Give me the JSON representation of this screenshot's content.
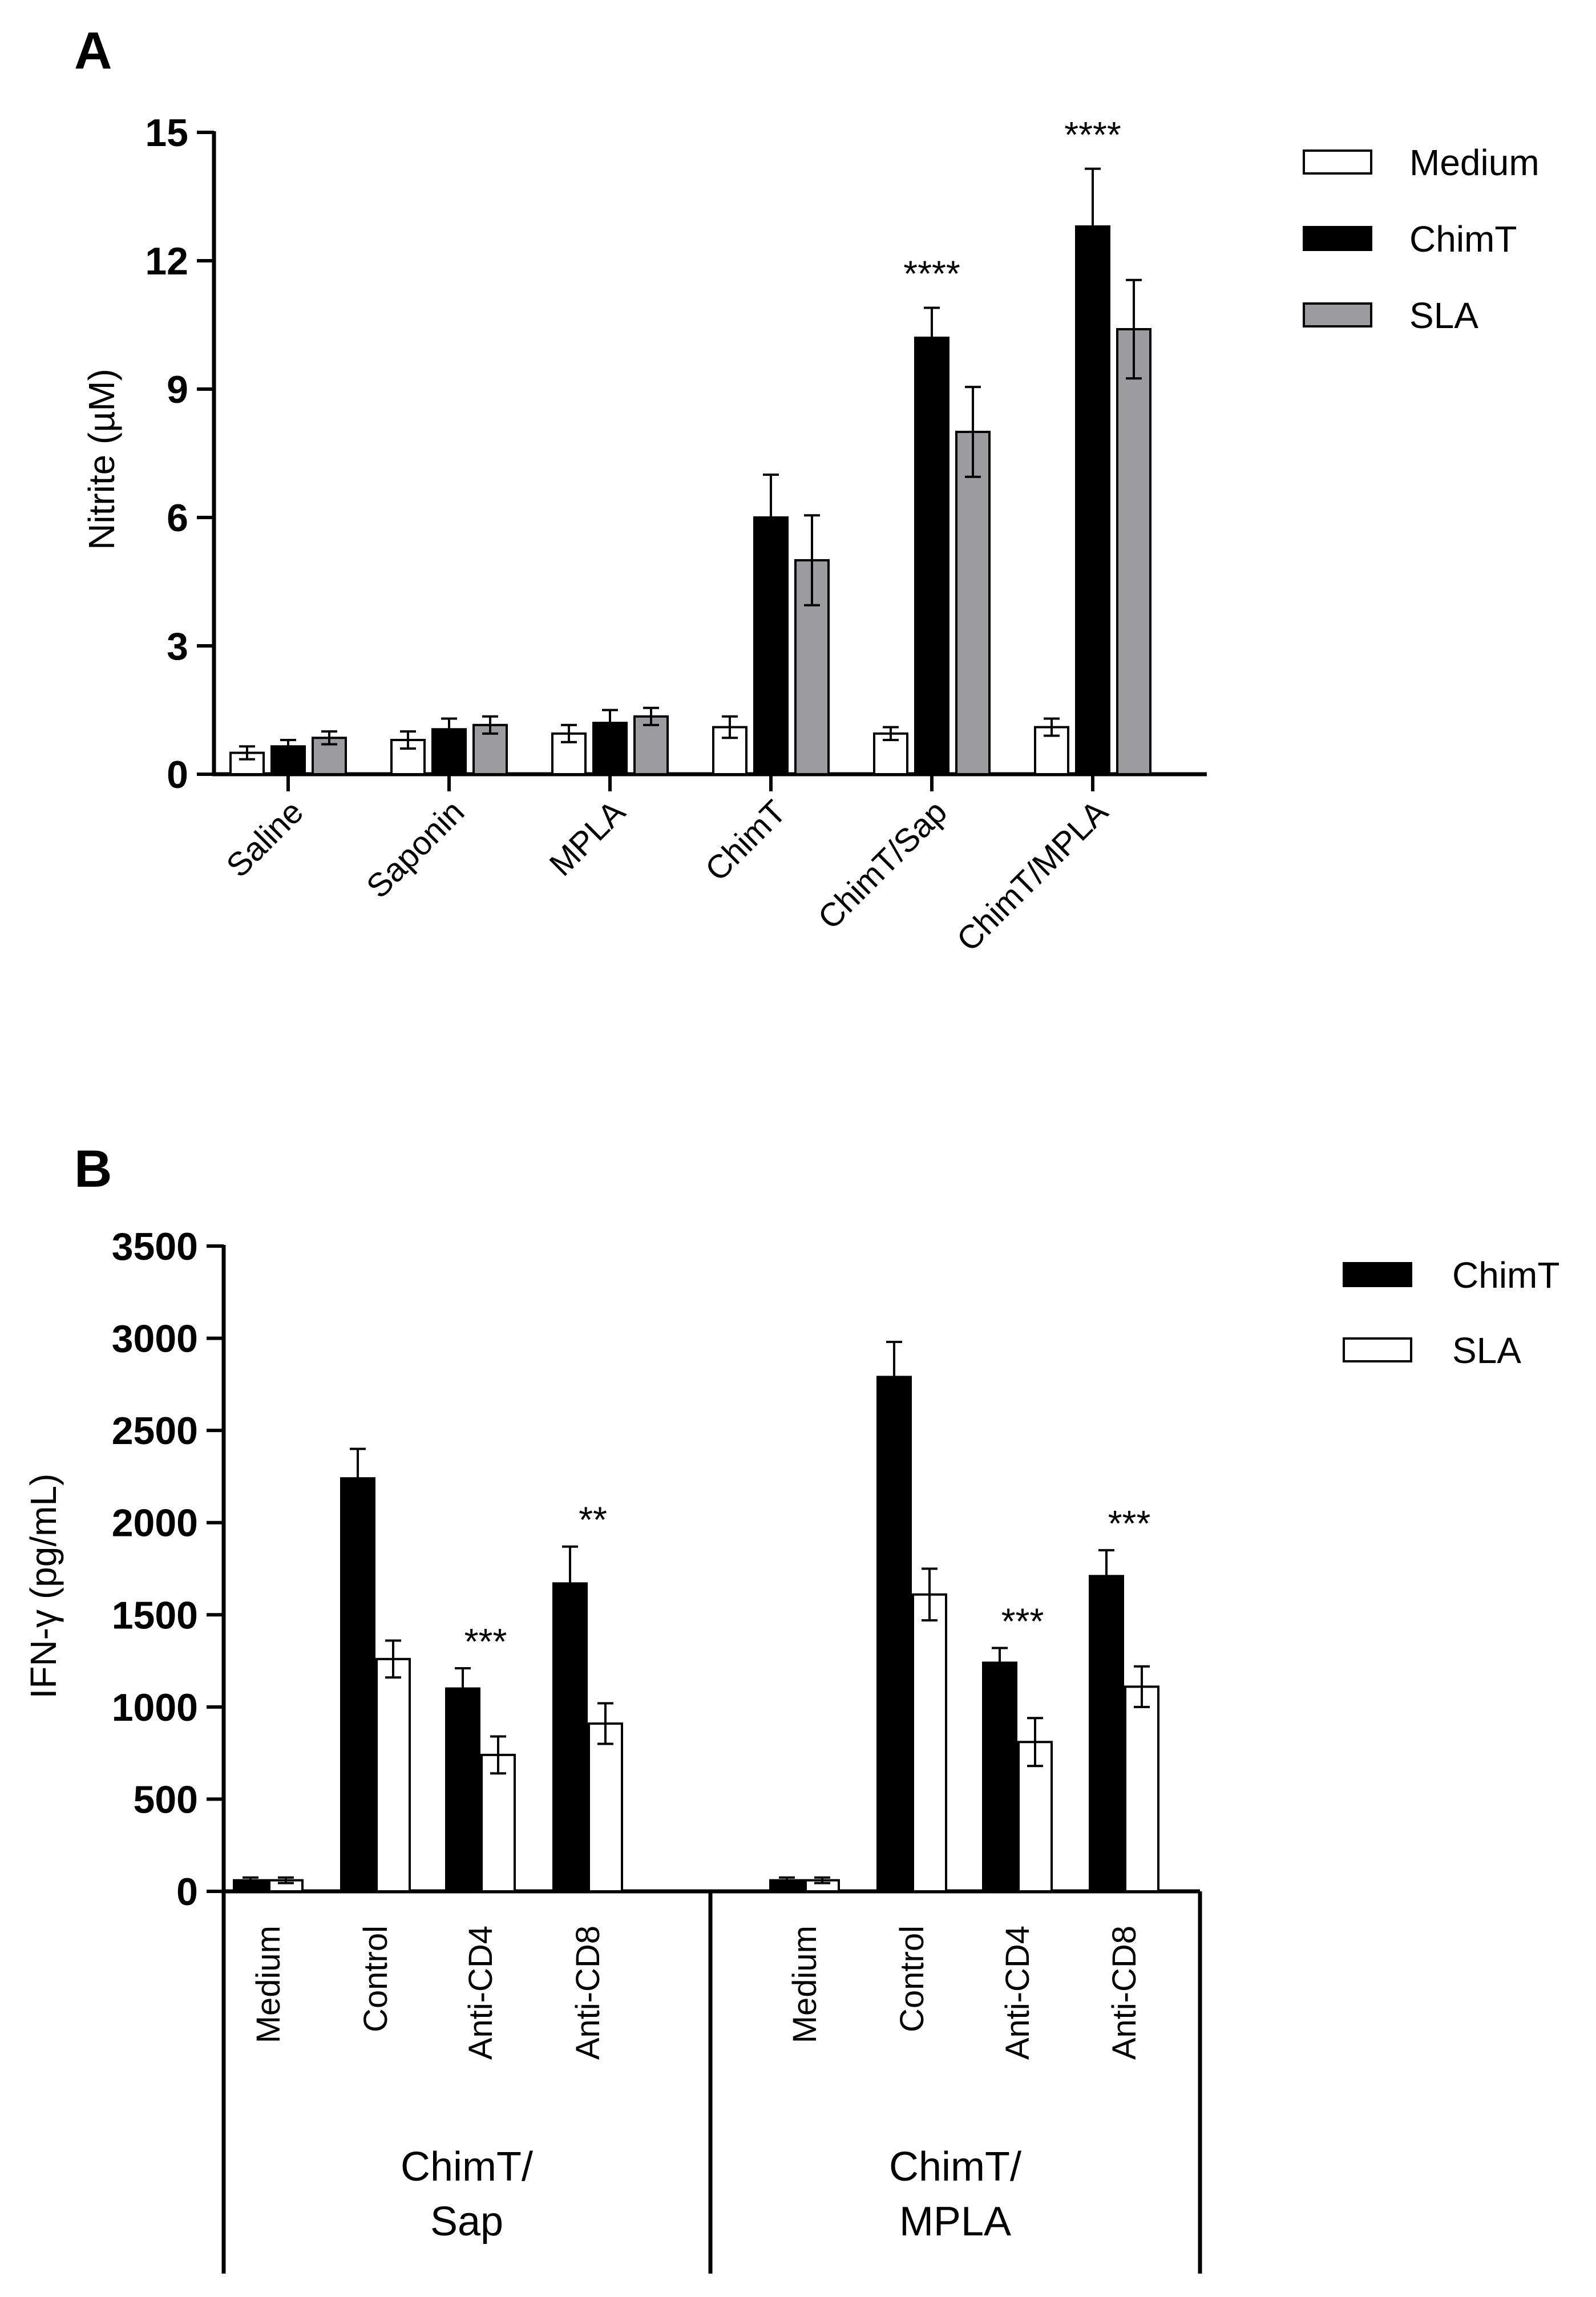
{
  "chart_data": [
    {
      "panel": "A",
      "type": "bar",
      "ylabel": "Nitrite (µM)",
      "ylim": [
        0,
        15
      ],
      "yticks": [
        "0",
        "3",
        "6",
        "9",
        "12",
        "15"
      ],
      "ytick_values": [
        0,
        3,
        6,
        9,
        12,
        15
      ],
      "categories": [
        "Saline",
        "Saponin",
        "MPLA",
        "ChimT",
        "ChimT/Sap",
        "ChimT/MPLA"
      ],
      "legend_position": "top-right",
      "series": [
        {
          "name": "Medium",
          "color": "#ffffff",
          "values": [
            0.5,
            0.8,
            0.95,
            1.1,
            0.95,
            1.1
          ],
          "errors": [
            0.15,
            0.2,
            0.2,
            0.25,
            0.15,
            0.2
          ]
        },
        {
          "name": "ChimT",
          "color": "#000000",
          "values": [
            0.65,
            1.05,
            1.2,
            6.0,
            10.2,
            12.8
          ],
          "errors": [
            0.15,
            0.25,
            0.3,
            1.0,
            0.7,
            1.35
          ]
        },
        {
          "name": "SLA",
          "color": "#9c9c9f",
          "values": [
            0.85,
            1.15,
            1.35,
            5.0,
            8.0,
            10.4
          ],
          "errors": [
            0.15,
            0.2,
            0.2,
            1.05,
            1.05,
            1.15
          ]
        }
      ],
      "annotations": [
        {
          "category": "ChimT/Sap",
          "text": "****"
        },
        {
          "category": "ChimT/MPLA",
          "text": "****"
        }
      ]
    },
    {
      "panel": "B",
      "type": "bar",
      "ylabel": "IFN-γ (pg/mL)",
      "ylim": [
        0,
        3500
      ],
      "yticks": [
        "0",
        "500",
        "1000",
        "1500",
        "2000",
        "2500",
        "3000",
        "3500"
      ],
      "ytick_values": [
        0,
        500,
        1000,
        1500,
        2000,
        2500,
        3000,
        3500
      ],
      "categories": [
        "Medium",
        "Control",
        "Anti-CD4",
        "Anti-CD8",
        "Medium",
        "Control",
        "Anti-CD4",
        "Anti-CD8"
      ],
      "groups": [
        {
          "line1": "ChimT/",
          "line2": "Sap"
        },
        {
          "line1": "ChimT/",
          "line2": "MPLA"
        }
      ],
      "legend_position": "top-right",
      "series": [
        {
          "name": "ChimT",
          "color": "#000000",
          "values": [
            60,
            2240,
            1100,
            1670,
            60,
            2790,
            1240,
            1710
          ],
          "errors": [
            15,
            160,
            110,
            200,
            15,
            190,
            80,
            140
          ]
        },
        {
          "name": "SLA",
          "color": "#ffffff",
          "values": [
            60,
            1260,
            740,
            910,
            60,
            1610,
            810,
            1110
          ],
          "errors": [
            15,
            100,
            100,
            110,
            15,
            140,
            130,
            110
          ]
        }
      ],
      "annotations": [
        {
          "category_index": 2,
          "text": "***"
        },
        {
          "category_index": 3,
          "text": "**"
        },
        {
          "category_index": 6,
          "text": "***"
        },
        {
          "category_index": 7,
          "text": "***"
        }
      ]
    }
  ],
  "panels": {
    "a_letter": "A",
    "b_letter": "B"
  }
}
